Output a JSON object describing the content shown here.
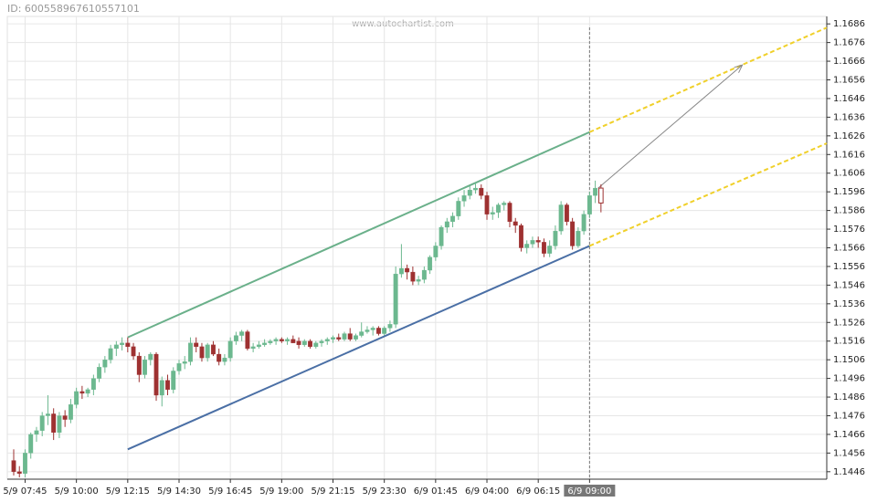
{
  "id_text": "ID: 600558967610557101",
  "watermark": "www.autochartist.com",
  "chart_data": {
    "type": "candlestick",
    "up_color": "#6cb88f",
    "down_color": "#9e3131",
    "xlim": [
      -1.12,
      142.6
    ],
    "ylim": [
      1.1442,
      1.169
    ],
    "grid": true,
    "now": 101,
    "xticks": [
      {
        "value": 2,
        "label": "5/9 07:45"
      },
      {
        "value": 11,
        "label": "5/9 10:00"
      },
      {
        "value": 20,
        "label": "5/9 12:15"
      },
      {
        "value": 29,
        "label": "5/9 14:30"
      },
      {
        "value": 38,
        "label": "5/9 16:45"
      },
      {
        "value": 47,
        "label": "5/9 19:00"
      },
      {
        "value": 56,
        "label": "5/9 21:15"
      },
      {
        "value": 65,
        "label": "5/9 23:30"
      },
      {
        "value": 74,
        "label": "6/9 01:45"
      },
      {
        "value": 83,
        "label": "6/9 04:00"
      },
      {
        "value": 92,
        "label": "6/9 06:15"
      },
      {
        "value": 101,
        "label": "6/9 09:00"
      }
    ],
    "yticks": [
      1.1446,
      1.1456,
      1.1466,
      1.1476,
      1.1486,
      1.1496,
      1.1506,
      1.1516,
      1.1526,
      1.1536,
      1.1546,
      1.1556,
      1.1566,
      1.1576,
      1.1586,
      1.1596,
      1.1606,
      1.1616,
      1.1626,
      1.1636,
      1.1646,
      1.1656,
      1.1666,
      1.1676,
      1.1686
    ],
    "candles": [
      [
        1.1452,
        1.1458,
        1.1444,
        1.1446
      ],
      [
        1.1446,
        1.1449,
        1.1443,
        1.1445
      ],
      [
        1.1445,
        1.1458,
        1.1443,
        1.1456
      ],
      [
        1.1456,
        1.1467,
        1.1453,
        1.1466
      ],
      [
        1.1466,
        1.147,
        1.1462,
        1.1468
      ],
      [
        1.1468,
        1.1478,
        1.1465,
        1.1476
      ],
      [
        1.1476,
        1.1487,
        1.1471,
        1.1477
      ],
      [
        1.1477,
        1.148,
        1.1463,
        1.1467
      ],
      [
        1.1467,
        1.1478,
        1.1464,
        1.1476
      ],
      [
        1.1476,
        1.1479,
        1.147,
        1.1474
      ],
      [
        1.1474,
        1.1485,
        1.1472,
        1.1482
      ],
      [
        1.1482,
        1.1491,
        1.148,
        1.1489
      ],
      [
        1.1489,
        1.1492,
        1.1485,
        1.1488
      ],
      [
        1.1488,
        1.1491,
        1.1486,
        1.149
      ],
      [
        1.149,
        1.1498,
        1.1487,
        1.1496
      ],
      [
        1.1496,
        1.1504,
        1.1494,
        1.1502
      ],
      [
        1.1502,
        1.1508,
        1.1499,
        1.1506
      ],
      [
        1.1506,
        1.1514,
        1.1504,
        1.1512
      ],
      [
        1.1512,
        1.1516,
        1.1508,
        1.1514
      ],
      [
        1.1514,
        1.1518,
        1.1511,
        1.1515
      ],
      [
        1.1515,
        1.1518,
        1.151,
        1.1513
      ],
      [
        1.1513,
        1.1515,
        1.1506,
        1.1508
      ],
      [
        1.1508,
        1.151,
        1.1494,
        1.1498
      ],
      [
        1.1498,
        1.1508,
        1.1496,
        1.1506
      ],
      [
        1.1506,
        1.151,
        1.1503,
        1.1509
      ],
      [
        1.1509,
        1.151,
        1.1484,
        1.1487
      ],
      [
        1.1487,
        1.1497,
        1.1481,
        1.1495
      ],
      [
        1.1495,
        1.1498,
        1.1487,
        1.149
      ],
      [
        1.149,
        1.1502,
        1.1488,
        1.15
      ],
      [
        1.15,
        1.1506,
        1.1498,
        1.1504
      ],
      [
        1.1504,
        1.1508,
        1.1501,
        1.1505
      ],
      [
        1.1505,
        1.1518,
        1.1503,
        1.1515
      ],
      [
        1.1515,
        1.1518,
        1.151,
        1.1513
      ],
      [
        1.1513,
        1.1515,
        1.1505,
        1.1507
      ],
      [
        1.1507,
        1.1515,
        1.1505,
        1.1514
      ],
      [
        1.1514,
        1.1516,
        1.1508,
        1.1509
      ],
      [
        1.1509,
        1.1512,
        1.1503,
        1.1505
      ],
      [
        1.1505,
        1.1509,
        1.1503,
        1.1507
      ],
      [
        1.1507,
        1.1518,
        1.1505,
        1.1516
      ],
      [
        1.1516,
        1.1521,
        1.1514,
        1.1519
      ],
      [
        1.1519,
        1.1522,
        1.1516,
        1.1521
      ],
      [
        1.1521,
        1.1522,
        1.1511,
        1.1512
      ],
      [
        1.1512,
        1.1515,
        1.151,
        1.1513
      ],
      [
        1.1513,
        1.1516,
        1.1512,
        1.1514
      ],
      [
        1.1514,
        1.1517,
        1.1513,
        1.1515
      ],
      [
        1.1515,
        1.1517,
        1.1514,
        1.1516
      ],
      [
        1.1516,
        1.1518,
        1.1514,
        1.1517
      ],
      [
        1.1517,
        1.1518,
        1.1515,
        1.1516
      ],
      [
        1.1516,
        1.1518,
        1.1514,
        1.1517
      ],
      [
        1.1517,
        1.1519,
        1.1515,
        1.1515
      ],
      [
        1.1516,
        1.1518,
        1.1512,
        1.1514
      ],
      [
        1.1514,
        1.1517,
        1.1513,
        1.1516
      ],
      [
        1.1516,
        1.1517,
        1.1512,
        1.1513
      ],
      [
        1.1513,
        1.1516,
        1.1512,
        1.1515
      ],
      [
        1.1515,
        1.1517,
        1.1513,
        1.1516
      ],
      [
        1.1516,
        1.1518,
        1.1514,
        1.1517
      ],
      [
        1.1517,
        1.1519,
        1.1515,
        1.1518
      ],
      [
        1.1518,
        1.152,
        1.1516,
        1.1517
      ],
      [
        1.1517,
        1.1521,
        1.1516,
        1.152
      ],
      [
        1.152,
        1.1523,
        1.1516,
        1.1517
      ],
      [
        1.1517,
        1.152,
        1.1516,
        1.1519
      ],
      [
        1.1519,
        1.1526,
        1.1518,
        1.1521
      ],
      [
        1.1521,
        1.1524,
        1.152,
        1.1522
      ],
      [
        1.1522,
        1.1524,
        1.1519,
        1.1523
      ],
      [
        1.1523,
        1.1524,
        1.1519,
        1.152
      ],
      [
        1.152,
        1.1524,
        1.1519,
        1.1523
      ],
      [
        1.1523,
        1.1527,
        1.1521,
        1.1525
      ],
      [
        1.1525,
        1.1556,
        1.1523,
        1.1552
      ],
      [
        1.1552,
        1.1568,
        1.155,
        1.1555
      ],
      [
        1.1555,
        1.1557,
        1.1549,
        1.1553
      ],
      [
        1.1553,
        1.1556,
        1.1546,
        1.1548
      ],
      [
        1.1548,
        1.1551,
        1.1546,
        1.1549
      ],
      [
        1.1549,
        1.1556,
        1.1547,
        1.1554
      ],
      [
        1.1554,
        1.1562,
        1.1552,
        1.1561
      ],
      [
        1.1561,
        1.1569,
        1.1559,
        1.1567
      ],
      [
        1.1567,
        1.1578,
        1.1565,
        1.1577
      ],
      [
        1.1577,
        1.1582,
        1.1574,
        1.158
      ],
      [
        1.158,
        1.1585,
        1.1577,
        1.1583
      ],
      [
        1.1583,
        1.1593,
        1.1581,
        1.1591
      ],
      [
        1.1591,
        1.1597,
        1.1588,
        1.1594
      ],
      [
        1.1594,
        1.1599,
        1.1592,
        1.1597
      ],
      [
        1.1597,
        1.1601,
        1.1595,
        1.1598
      ],
      [
        1.1598,
        1.16,
        1.1592,
        1.1594
      ],
      [
        1.1594,
        1.1596,
        1.1581,
        1.1584
      ],
      [
        1.1584,
        1.1588,
        1.1581,
        1.1585
      ],
      [
        1.1585,
        1.159,
        1.1582,
        1.1589
      ],
      [
        1.1589,
        1.1591,
        1.1586,
        1.159
      ],
      [
        1.159,
        1.1591,
        1.1577,
        1.158
      ],
      [
        1.158,
        1.1582,
        1.1574,
        1.1578
      ],
      [
        1.1578,
        1.1579,
        1.1564,
        1.1566
      ],
      [
        1.1566,
        1.157,
        1.1563,
        1.1568
      ],
      [
        1.1568,
        1.1572,
        1.1566,
        1.157
      ],
      [
        1.157,
        1.1572,
        1.1566,
        1.1569
      ],
      [
        1.1569,
        1.1571,
        1.1561,
        1.1563
      ],
      [
        1.1563,
        1.157,
        1.1561,
        1.1567
      ],
      [
        1.1567,
        1.1578,
        1.1565,
        1.1575
      ],
      [
        1.1575,
        1.1591,
        1.1573,
        1.1589
      ],
      [
        1.1589,
        1.159,
        1.1578,
        1.158
      ],
      [
        1.158,
        1.1582,
        1.1565,
        1.1567
      ],
      [
        1.1567,
        1.1577,
        1.1566,
        1.1575
      ],
      [
        1.1575,
        1.1586,
        1.1573,
        1.1584
      ],
      [
        1.1584,
        1.1596,
        1.1582,
        1.1594
      ],
      [
        1.1594,
        1.1602,
        1.159,
        1.1598
      ],
      [
        1.1598,
        1.16,
        1.1585,
        1.159
      ]
    ],
    "hollow_last": true,
    "lines": [
      {
        "color": "#6ab08a",
        "dash": false,
        "arrow": false,
        "points": [
          [
            20,
            1.1518
          ],
          [
            101,
            1.1628
          ]
        ]
      },
      {
        "color": "#4a6fa5",
        "dash": false,
        "arrow": false,
        "points": [
          [
            20,
            1.1458
          ],
          [
            101,
            1.1567
          ]
        ]
      },
      {
        "color": "#f0d02a",
        "dash": true,
        "arrow": false,
        "points": [
          [
            101,
            1.1628
          ],
          [
            142.6,
            1.1684
          ]
        ]
      },
      {
        "color": "#f0d02a",
        "dash": true,
        "arrow": false,
        "points": [
          [
            101,
            1.1567
          ],
          [
            142.6,
            1.1622
          ]
        ]
      },
      {
        "color": "#888888",
        "dash": false,
        "arrow": true,
        "points": [
          [
            102.5,
            1.1598
          ],
          [
            127.8,
            1.1664
          ]
        ]
      }
    ]
  }
}
